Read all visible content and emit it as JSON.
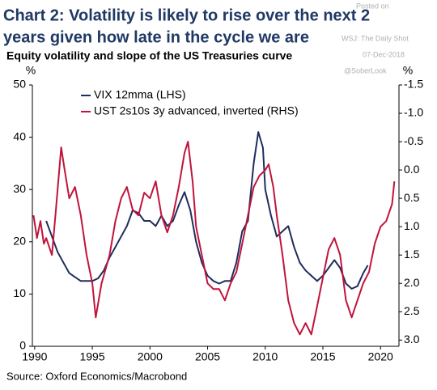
{
  "chart_data": {
    "type": "line",
    "title": [
      "Chart 2: Volatility is likely to rise over the next 2",
      "years given how late in the cycle we are"
    ],
    "subtitle": "Equity volatility and slope of the US Treasuries curve",
    "annotations": [
      "Posted on",
      "WSJ: The Daily Shot",
      "07-Dec-2018",
      "@SoberLook"
    ],
    "ylabel": "%",
    "y2label": "%",
    "source": "Source: Oxford Economics/Macrobond",
    "xlim": [
      1989.8,
      2021.6
    ],
    "xticks": [
      1990,
      1995,
      2000,
      2005,
      2010,
      2015,
      2020
    ],
    "ylim": [
      0,
      50
    ],
    "yticks": [
      0,
      10,
      20,
      30,
      40,
      50
    ],
    "y2lim": [
      3.11,
      -1.5
    ],
    "y2ticks": [
      -1.5,
      {
        "value": -1,
        "label": "-1.0"
      },
      -0.5,
      {
        "value": 0,
        "label": "0.0"
      },
      0.5,
      {
        "value": 1,
        "label": "1.0"
      },
      1.5,
      {
        "value": 2,
        "label": "2.0"
      },
      2.5,
      {
        "value": 3,
        "label": "3.0"
      }
    ],
    "series": [
      {
        "name": "VIX 12mma (LHS)",
        "color": "#1f2d5c",
        "axis": "y",
        "x": [
          1991.0,
          1991.5,
          1992,
          1993,
          1994,
          1995,
          1995.5,
          1996,
          1996.5,
          1997,
          1997.5,
          1998,
          1998.5,
          1999,
          1999.5,
          2000,
          2000.5,
          2001,
          2001.5,
          2002,
          2002.5,
          2003,
          2003.5,
          2004,
          2004.5,
          2005,
          2005.5,
          2006,
          2006.5,
          2007,
          2007.5,
          2008,
          2008.5,
          2009,
          2009.4,
          2009.8,
          2010,
          2010.5,
          2011,
          2011.5,
          2012,
          2012.5,
          2013,
          2013.5,
          2014,
          2014.5,
          2015,
          2015.5,
          2016,
          2016.5,
          2017,
          2017.5,
          2018,
          2018.5,
          2018.9
        ],
        "values": [
          24,
          21,
          18,
          14,
          12.5,
          12.5,
          13,
          14.5,
          17,
          19,
          21,
          23,
          26,
          25.5,
          24,
          24,
          23,
          25,
          23,
          24,
          27,
          29.5,
          26,
          20,
          16,
          13.5,
          12.5,
          12,
          12.5,
          12.5,
          16,
          22,
          24,
          35,
          41,
          38,
          30,
          25,
          21,
          22,
          23,
          19,
          16,
          14.5,
          13.5,
          12.5,
          13.5,
          15,
          16.5,
          15,
          12,
          11,
          11.5,
          14,
          15.5
        ]
      },
      {
        "name": "UST 2s10s 3y advanced, inverted (RHS)",
        "color": "#c0143c",
        "axis": "y2",
        "x": [
          1989.9,
          1990.2,
          1990.5,
          1990.8,
          1991,
          1991.5,
          1991.8,
          1992.3,
          1992.6,
          1993,
          1993.5,
          1994,
          1994.5,
          1995,
          1995.3,
          1995.8,
          1996.5,
          1997,
          1997.5,
          1998,
          1998.5,
          1999,
          1999.5,
          2000,
          2000.5,
          2001,
          2001.5,
          2002,
          2002.5,
          2003,
          2003.3,
          2003.7,
          2004,
          2004.5,
          2005,
          2005.5,
          2006,
          2006.5,
          2007,
          2007.5,
          2008,
          2008.5,
          2009,
          2009.5,
          2010,
          2010.3,
          2010.7,
          2011,
          2011.5,
          2012,
          2012.5,
          2013,
          2013.5,
          2014,
          2014.5,
          2015,
          2015.5,
          2016,
          2016.5,
          2017,
          2017.5,
          2018,
          2018.5,
          2019,
          2019.5,
          2020,
          2020.5,
          2021,
          2021.2
        ],
        "values": [
          0.8,
          1.2,
          0.9,
          1.3,
          1.2,
          1.5,
          0.8,
          -0.4,
          0.0,
          0.5,
          0.3,
          0.8,
          1.5,
          2.0,
          2.6,
          2.0,
          1.5,
          0.9,
          0.5,
          0.3,
          0.7,
          0.8,
          0.4,
          0.5,
          0.2,
          0.8,
          1.1,
          0.8,
          0.3,
          -0.3,
          -0.5,
          0.2,
          1.0,
          1.5,
          2.0,
          2.1,
          2.1,
          2.3,
          2.0,
          1.8,
          1.3,
          0.8,
          0.3,
          0.1,
          0.0,
          -0.1,
          0.3,
          0.8,
          1.5,
          2.3,
          2.7,
          2.9,
          2.7,
          2.9,
          2.4,
          1.9,
          1.4,
          1.2,
          1.5,
          2.3,
          2.6,
          2.3,
          2.0,
          1.8,
          1.3,
          1.0,
          0.9,
          0.6,
          0.2
        ]
      }
    ]
  }
}
